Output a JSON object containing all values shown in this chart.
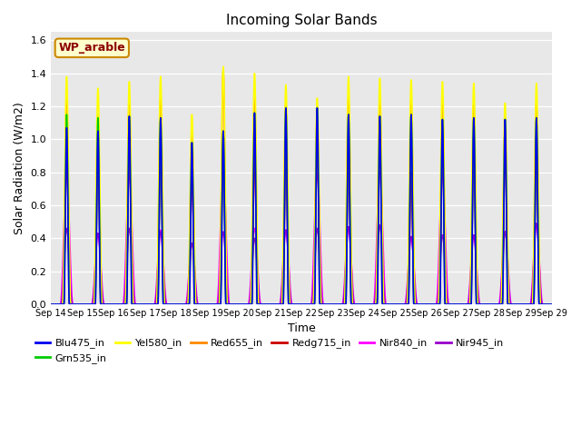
{
  "title": "Incoming Solar Bands",
  "xlabel": "Time",
  "ylabel": "Solar Radiation (W/m2)",
  "ylim": [
    0,
    1.65
  ],
  "yticks": [
    0.0,
    0.2,
    0.4,
    0.6,
    0.8,
    1.0,
    1.2,
    1.4,
    1.6
  ],
  "num_days": 16,
  "xtick_labels": [
    "Sep 14",
    "Sep 15",
    "Sep 16",
    "Sep 17",
    "Sep 18",
    "Sep 19",
    "Sep 20",
    "Sep 21",
    "Sep 22",
    "Sep 23",
    "Sep 24",
    "Sep 25",
    "Sep 26",
    "Sep 27",
    "Sep 28",
    "Sep 29"
  ],
  "legend_label": "WP_arable",
  "series_order": [
    "Nir840_in",
    "Nir945_in",
    "Redg715_in",
    "Red655_in",
    "Yel580_in",
    "Grn535_in",
    "Blu475_in"
  ],
  "series": {
    "Blu475_in": {
      "color": "#0000ee",
      "lw": 1.2
    },
    "Grn535_in": {
      "color": "#00cc00",
      "lw": 1.2
    },
    "Yel580_in": {
      "color": "#ffff00",
      "lw": 1.2
    },
    "Red655_in": {
      "color": "#ff8800",
      "lw": 1.2
    },
    "Redg715_in": {
      "color": "#cc0000",
      "lw": 1.2
    },
    "Nir840_in": {
      "color": "#ff00ff",
      "lw": 1.2
    },
    "Nir945_in": {
      "color": "#9900cc",
      "lw": 1.2
    }
  },
  "peak_values": {
    "Yel580_in": [
      1.38,
      1.31,
      1.35,
      1.38,
      1.15,
      1.44,
      1.4,
      1.33,
      1.25,
      1.38,
      1.37,
      1.36,
      1.35,
      1.34,
      1.22,
      1.34
    ],
    "Red655_in": [
      1.25,
      1.14,
      1.25,
      1.25,
      1.04,
      1.42,
      1.25,
      1.19,
      1.18,
      1.25,
      1.24,
      1.23,
      1.22,
      1.21,
      1.1,
      1.21
    ],
    "Redg715_in": [
      0.99,
      0.95,
      1.01,
      0.98,
      0.8,
      1.05,
      0.92,
      0.91,
      1.02,
      0.93,
      1.04,
      0.8,
      0.99,
      0.97,
      0.97,
      0.97
    ],
    "Nir840_in": [
      0.78,
      0.43,
      0.78,
      0.45,
      0.37,
      0.8,
      0.46,
      0.45,
      0.79,
      0.47,
      0.8,
      0.41,
      0.78,
      0.42,
      0.44,
      0.49
    ],
    "Nir945_in": [
      0.46,
      0.43,
      0.46,
      0.44,
      0.37,
      0.44,
      0.4,
      0.45,
      0.46,
      0.47,
      0.48,
      0.41,
      0.42,
      0.42,
      0.44,
      0.49
    ],
    "Blu475_in": [
      1.07,
      1.05,
      1.14,
      1.13,
      0.98,
      1.05,
      1.16,
      1.19,
      1.19,
      1.15,
      1.14,
      1.15,
      1.12,
      1.13,
      1.12,
      1.13
    ],
    "Grn535_in": [
      1.15,
      1.13,
      1.14,
      1.13,
      0.98,
      1.05,
      1.16,
      1.19,
      1.19,
      1.15,
      1.14,
      1.15,
      1.12,
      1.13,
      1.12,
      1.13
    ]
  },
  "day_widths": {
    "Yel580_in": 0.13,
    "Red655_in": 0.12,
    "Redg715_in": 0.1,
    "Nir840_in": 0.2,
    "Nir945_in": 0.18,
    "Blu475_in": 0.085,
    "Grn535_in": 0.09
  },
  "background_color": "#e8e8e8",
  "fig_facecolor": "#ffffff"
}
